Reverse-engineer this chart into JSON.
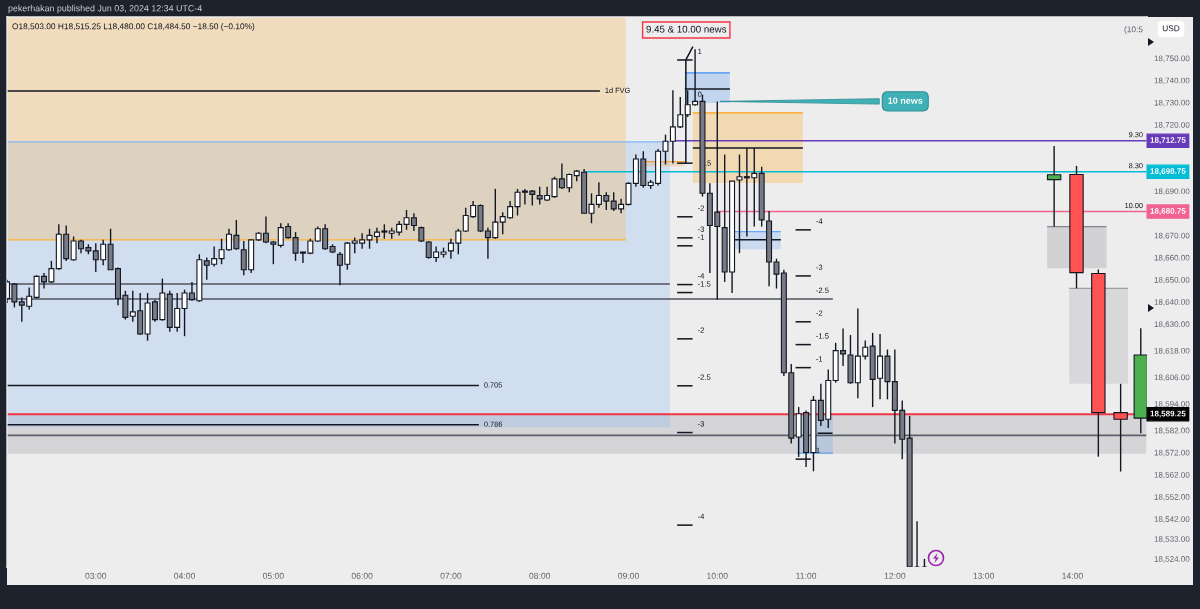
{
  "chart_data": {
    "type": "candlestick",
    "title": "pekerhakan published Jun 03, 2024 12:34 UTC-4",
    "subtitle": "O18,503.00 H18,515.25 L18,480.00 C18,484.50 −18.50 (−0.10%)",
    "xlim": [
      2.0,
      14.84
    ],
    "ylim": [
      18520.3,
      18768.6
    ],
    "xticks": [
      {
        "value": 3,
        "label": "03:00"
      },
      {
        "value": 4,
        "label": "04:00"
      },
      {
        "value": 5,
        "label": "05:00"
      },
      {
        "value": 6,
        "label": "06:00"
      },
      {
        "value": 7,
        "label": "07:00"
      },
      {
        "value": 8,
        "label": "08:00"
      },
      {
        "value": 9,
        "label": "09:00"
      },
      {
        "value": 10,
        "label": "10:00"
      },
      {
        "value": 11,
        "label": "11:00"
      },
      {
        "value": 12,
        "label": "12:00"
      },
      {
        "value": 13,
        "label": "13:00"
      },
      {
        "value": 14,
        "label": "14:00"
      }
    ],
    "yticks": [
      {
        "value": 18750,
        "label": "18,750.00"
      },
      {
        "value": 18740,
        "label": "18,740.00"
      },
      {
        "value": 18730,
        "label": "18,730.00"
      },
      {
        "value": 18720,
        "label": "18,720.00"
      },
      {
        "value": 18690,
        "label": "18,690.00"
      },
      {
        "value": 18670,
        "label": "18,670.00"
      },
      {
        "value": 18660,
        "label": "18,660.00"
      },
      {
        "value": 18650,
        "label": "18,650.00"
      },
      {
        "value": 18640,
        "label": "18,640.00"
      },
      {
        "value": 18630,
        "label": "18,630.00"
      },
      {
        "value": 18618,
        "label": "18,618.00"
      },
      {
        "value": 18606,
        "label": "18,606.00"
      },
      {
        "value": 18594,
        "label": "18,594.00"
      },
      {
        "value": 18582,
        "label": "18,582.00"
      },
      {
        "value": 18572,
        "label": "18,572.00"
      },
      {
        "value": 18562,
        "label": "18,562.00"
      },
      {
        "value": 18552,
        "label": "18,552.00"
      },
      {
        "value": 18542,
        "label": "18,542.00"
      },
      {
        "value": 18533,
        "label": "18,533.00"
      },
      {
        "value": 18524,
        "label": "18,524.00"
      }
    ],
    "bands": [
      {
        "axis": "y",
        "from": 18571.4,
        "to": 18589.0,
        "color": "#d5d5d7"
      }
    ],
    "ref_lines": [
      {
        "axis": "y",
        "value": 18589.25,
        "label": "18,589.25",
        "color": "#f23645"
      },
      {
        "axis": "y",
        "value": 18579.7,
        "color": "#5d606b"
      }
    ],
    "series": [
      {
        "type": "line",
        "x": [
          2.0,
          9.466
        ],
        "values": [
          18712.2,
          18712.2
        ],
        "lower": [
          18583.4,
          18583.4
        ],
        "upper": [
          18712.2,
          18712.2
        ],
        "color": "#81b5f9"
      },
      {
        "type": "line",
        "x": [
          2.0,
          8.971
        ],
        "values": [
          18668.0,
          18668.0
        ],
        "lower": [
          18668.0,
          18668.0
        ],
        "upper": [
          18768.6,
          18768.6
        ],
        "color": "#ffb131"
      },
      {
        "type": "line",
        "x": [
          9.635,
          10.142
        ],
        "values": [
          18743.4,
          18743.4
        ],
        "lower": [
          18729.8,
          18729.8
        ],
        "upper": [
          18743.4,
          18743.4
        ],
        "color": "#4191f9"
      },
      {
        "type": "line",
        "x": [
          9.725,
          10.964
        ],
        "values": [
          18725.3,
          18725.3
        ],
        "lower": [
          18693.7,
          18693.7
        ],
        "upper": [
          18725.3,
          18725.3
        ],
        "color": "#ffa10d"
      },
      {
        "type": "line",
        "x": [
          10.176,
          10.716
        ],
        "values": [
          18671.7,
          18671.7
        ],
        "lower": [
          18663.8,
          18663.8
        ],
        "upper": [
          18671.7,
          18671.7
        ],
        "color": "#65a9ff"
      },
      {
        "type": "line",
        "x": [
          10.897,
          11.302
        ],
        "values": [
          18571.7,
          18571.7
        ],
        "lower": [
          18571.7,
          18571.7
        ],
        "upper": [
          18589.0,
          18589.0
        ],
        "color": "#61a1eb"
      },
      {
        "type": "line",
        "x": [
          13.715,
          14.384
        ],
        "values": [
          18674.0,
          18674.0
        ],
        "lower": [
          18655.2,
          18655.2
        ],
        "upper": [
          18674.0,
          18674.0
        ],
        "color": "#85858d"
      },
      {
        "type": "line",
        "x": [
          13.963,
          14.627
        ],
        "values": [
          18646.1,
          18646.1
        ],
        "lower": [
          18603.0,
          18603.0
        ],
        "upper": [
          18646.1,
          18646.1
        ],
        "color": "#9d9da5"
      },
      {
        "type": "line",
        "x": [
          9.166,
          9.635
        ],
        "values": [
          18703.3,
          18703.3
        ],
        "lower": [
          18701.1,
          18701.1
        ],
        "upper": [
          18703.3,
          18703.3
        ],
        "color": "#f0a040"
      },
      {
        "type": "line",
        "name": "1d FVG",
        "x": [
          2.0,
          8.678
        ],
        "values": [
          18735.2,
          18735.2
        ],
        "color": "#131722"
      },
      {
        "type": "line",
        "x": [
          2.0,
          9.466
        ],
        "values": [
          18648.1,
          18648.1
        ],
        "color": "#50535e"
      },
      {
        "type": "line",
        "x": [
          2.0,
          11.302
        ],
        "values": [
          18641.3,
          18641.3
        ],
        "color": "#50535e"
      },
      {
        "type": "line",
        "name": "0.705",
        "x": [
          2.0,
          7.315
        ],
        "values": [
          18602.2,
          18602.2
        ],
        "color": "#131722"
      },
      {
        "type": "line",
        "name": "0.786",
        "x": [
          2.0,
          7.315
        ],
        "values": [
          18584.5,
          18584.5
        ],
        "color": "#131722"
      },
      {
        "type": "line",
        "name": "9.30",
        "x": [
          9.5,
          14.84
        ],
        "values": [
          18712.75,
          18712.75
        ],
        "color": "#673ab7",
        "value_labels": [
          null,
          "18,712.75"
        ]
      },
      {
        "type": "line",
        "name": "8.30",
        "x": [
          8.5,
          14.84
        ],
        "values": [
          18698.75,
          18698.75
        ],
        "color": "#00bcd4",
        "value_labels": [
          null,
          "18,698.75"
        ]
      },
      {
        "type": "line",
        "name": "10.00",
        "x": [
          10.0,
          14.84
        ],
        "values": [
          18680.75,
          18680.75
        ],
        "color": "#f06292",
        "value_labels": [
          null,
          "18,680.75"
        ]
      },
      {
        "type": "line",
        "x": [
          9.635,
          10.142
        ],
        "values": [
          18736.1,
          18736.1
        ],
        "color": "#131722"
      },
      {
        "type": "line",
        "x": [
          9.725,
          10.964
        ],
        "values": [
          18709.5,
          18709.5
        ],
        "color": "#131722"
      },
      {
        "type": "line",
        "x": [
          10.176,
          10.716
        ],
        "values": [
          18668.0,
          18668.0
        ],
        "color": "#131722"
      },
      {
        "type": "line",
        "x": [
          11.13,
          11.298
        ],
        "values": [
          18580.7,
          18580.7
        ],
        "color": "#131722"
      },
      {
        "type": "line",
        "x": [
          9.725,
          9.646,
          9.646
        ],
        "values": [
          18755.2,
          18749.2,
          18702.6
        ],
        "color": "#131722"
      },
      {
        "type": "line",
        "x": [
          9.548,
          9.722
        ],
        "values": [
          18749.2,
          18749.2
        ],
        "color": "#131722"
      },
      {
        "type": "line",
        "x": [
          9.548,
          9.722
        ],
        "values": [
          18702.6,
          18702.6
        ],
        "color": "#131722"
      },
      {
        "type": "line",
        "x": [
          9.548,
          9.722
        ],
        "values": [
          18678.4,
          18678.4
        ],
        "color": "#131722"
      },
      {
        "type": "line",
        "x": [
          9.548,
          9.722
        ],
        "values": [
          18668.9,
          18668.9
        ],
        "color": "#131722"
      },
      {
        "type": "line",
        "x": [
          9.548,
          9.722
        ],
        "values": [
          18665.3,
          18665.3
        ],
        "color": "#131722"
      },
      {
        "type": "line",
        "x": [
          9.548,
          9.722
        ],
        "values": [
          18647.8,
          18647.8
        ],
        "color": "#131722"
      },
      {
        "type": "line",
        "x": [
          9.548,
          9.722
        ],
        "values": [
          18644.2,
          18644.2
        ],
        "color": "#131722"
      },
      {
        "type": "line",
        "x": [
          9.548,
          9.722
        ],
        "values": [
          18623.3,
          18623.3
        ],
        "color": "#131722"
      },
      {
        "type": "line",
        "x": [
          9.548,
          9.722
        ],
        "values": [
          18602.1,
          18602.1
        ],
        "color": "#131722"
      },
      {
        "type": "line",
        "x": [
          9.548,
          9.722
        ],
        "values": [
          18581.0,
          18581.0
        ],
        "color": "#131722"
      },
      {
        "type": "line",
        "x": [
          9.548,
          9.722
        ],
        "values": [
          18539.2,
          18539.2
        ],
        "color": "#131722"
      },
      {
        "type": "line",
        "x": [
          10.882,
          11.054
        ],
        "values": [
          18672.5,
          18672.5
        ],
        "color": "#131722"
      },
      {
        "type": "line",
        "x": [
          10.882,
          11.054
        ],
        "values": [
          18651.7,
          18651.7
        ],
        "color": "#131722"
      },
      {
        "type": "line",
        "x": [
          10.882,
          11.054
        ],
        "values": [
          18631.0,
          18631.0
        ],
        "color": "#131722"
      },
      {
        "type": "line",
        "x": [
          10.882,
          11.054
        ],
        "values": [
          18620.7,
          18620.7
        ],
        "color": "#131722"
      },
      {
        "type": "line",
        "x": [
          10.882,
          11.054
        ],
        "values": [
          18610.3,
          18610.3
        ],
        "color": "#131722"
      },
      {
        "type": "line",
        "x": [
          10.882,
          11.054
        ],
        "values": [
          18569.0,
          18569.0
        ],
        "color": "#131722"
      },
      {
        "x": [
          2,
          2.0833,
          2.1667,
          2.25,
          2.3333,
          2.4167,
          2.5,
          2.5833,
          2.6667,
          2.75,
          2.8333,
          2.9167,
          3,
          3.0833,
          3.1667,
          3.25,
          3.3333,
          3.4167,
          3.5,
          3.5833,
          3.6667,
          3.75,
          3.8333,
          3.9167,
          4,
          4.0833,
          4.1667,
          4.25,
          4.3333,
          4.4167,
          4.5,
          4.5833,
          4.6667,
          4.75,
          4.8333,
          4.9167,
          5,
          5.0833,
          5.1667,
          5.25,
          5.3333,
          5.4167,
          5.5,
          5.5833,
          5.6667,
          5.75,
          5.8333,
          5.9167,
          6,
          6.0833,
          6.1667,
          6.25,
          6.3333,
          6.4167,
          6.5,
          6.5833,
          6.6667,
          6.75,
          6.8333,
          6.9167,
          7,
          7.0833,
          7.1667,
          7.25,
          7.3333,
          7.4167,
          7.5,
          7.5833,
          7.6667,
          7.75,
          7.8333,
          7.9167,
          8,
          8.0833,
          8.1667,
          8.25,
          8.3333,
          8.4167,
          8.5,
          8.5833,
          8.6667,
          8.75,
          8.8333,
          8.9167,
          9,
          9.0833,
          9.1667,
          9.25,
          9.3333,
          9.4167,
          9.5,
          9.5833,
          9.6667,
          9.75,
          9.8333,
          9.9167,
          10,
          10.0833,
          10.1667,
          10.25,
          10.3333,
          10.4167,
          10.5,
          10.5833,
          10.6667,
          10.75,
          10.8333,
          10.9167,
          11,
          11.0833,
          11.1667,
          11.25,
          11.3333,
          11.4167,
          11.5,
          11.5833,
          11.6667,
          11.75,
          11.8333,
          11.9167,
          12,
          12.0833,
          12.1667,
          12.25,
          12.3333
        ],
        "ohlc": [
          [
            18641.5,
            18650.0,
            18639.5,
            18649.0
          ],
          [
            18648.0,
            18648.5,
            18637.5,
            18640.0
          ],
          [
            18640.0,
            18642.0,
            18631.0,
            18638.5
          ],
          [
            18638.0,
            18646.5,
            18636.5,
            18642.5
          ],
          [
            18642.0,
            18652.0,
            18641.5,
            18651.5
          ],
          [
            18651.5,
            18653.0,
            18646.0,
            18649.0
          ],
          [
            18649.0,
            18658.5,
            18648.5,
            18655.0
          ],
          [
            18655.0,
            18675.0,
            18654.5,
            18670.5
          ],
          [
            18670.5,
            18674.5,
            18658.5,
            18659.5
          ],
          [
            18659.0,
            18669.5,
            18658.5,
            18667.5
          ],
          [
            18667.5,
            18668.0,
            18662.0,
            18664.0
          ],
          [
            18664.5,
            18666.0,
            18661.5,
            18663.0
          ],
          [
            18663.0,
            18666.5,
            18653.5,
            18659.0
          ],
          [
            18659.0,
            18668.0,
            18656.5,
            18666.0
          ],
          [
            18666.0,
            18673.0,
            18654.5,
            18654.5
          ],
          [
            18655.0,
            18655.5,
            18638.5,
            18641.5
          ],
          [
            18643.0,
            18645.0,
            18632.0,
            18633.0
          ],
          [
            18633.5,
            18645.0,
            18631.0,
            18635.5
          ],
          [
            18636.0,
            18644.0,
            18625.0,
            18625.5
          ],
          [
            18625.5,
            18644.0,
            18622.5,
            18639.5
          ],
          [
            18640.0,
            18641.0,
            18631.0,
            18632.0
          ],
          [
            18632.0,
            18650.5,
            18631.5,
            18644.0
          ],
          [
            18643.5,
            18645.0,
            18626.5,
            18628.5
          ],
          [
            18628.5,
            18644.0,
            18626.5,
            18637.0
          ],
          [
            18637.0,
            18645.5,
            18624.5,
            18644.0
          ],
          [
            18644.0,
            18649.0,
            18640.5,
            18641.0
          ],
          [
            18640.5,
            18661.5,
            18640.0,
            18659.0
          ],
          [
            18658.5,
            18660.0,
            18650.0,
            18656.5
          ],
          [
            18657.0,
            18665.0,
            18656.0,
            18659.5
          ],
          [
            18659.5,
            18668.5,
            18657.0,
            18663.5
          ],
          [
            18663.5,
            18673.0,
            18663.0,
            18670.5
          ],
          [
            18670.0,
            18677.0,
            18663.5,
            18664.0
          ],
          [
            18663.5,
            18667.5,
            18652.0,
            18654.5
          ],
          [
            18654.5,
            18668.0,
            18653.0,
            18668.0
          ],
          [
            18668.0,
            18671.5,
            18667.5,
            18671.0
          ],
          [
            18671.0,
            18678.5,
            18666.5,
            18667.0
          ],
          [
            18667.0,
            18667.5,
            18657.0,
            18666.0
          ],
          [
            18665.5,
            18675.5,
            18664.5,
            18673.5
          ],
          [
            18674.0,
            18675.5,
            18668.5,
            18669.0
          ],
          [
            18669.0,
            18671.5,
            18658.5,
            18662.0
          ],
          [
            18662.5,
            18662.5,
            18657.5,
            18662.0
          ],
          [
            18662.0,
            18668.5,
            18661.5,
            18667.5
          ],
          [
            18667.5,
            18674.0,
            18667.0,
            18673.0
          ],
          [
            18673.0,
            18675.0,
            18663.5,
            18664.0
          ],
          [
            18665.0,
            18666.0,
            18662.0,
            18662.5
          ],
          [
            18661.5,
            18662.5,
            18647.5,
            18656.5
          ],
          [
            18657.0,
            18667.0,
            18654.5,
            18666.5
          ],
          [
            18666.5,
            18669.0,
            18662.0,
            18667.5
          ],
          [
            18666.5,
            18671.0,
            18664.0,
            18668.0
          ],
          [
            18668.0,
            18673.0,
            18664.0,
            18670.0
          ],
          [
            18669.5,
            18673.5,
            18666.5,
            18671.5
          ],
          [
            18672.0,
            18675.0,
            18668.5,
            18671.5
          ],
          [
            18671.0,
            18673.5,
            18668.5,
            18672.0
          ],
          [
            18671.5,
            18676.5,
            18670.0,
            18675.0
          ],
          [
            18675.0,
            18681.5,
            18672.5,
            18678.0
          ],
          [
            18678.0,
            18680.0,
            18672.0,
            18674.5
          ],
          [
            18673.5,
            18674.0,
            18667.0,
            18667.5
          ],
          [
            18667.0,
            18667.5,
            18659.5,
            18660.0
          ],
          [
            18660.0,
            18665.0,
            18658.0,
            18662.5
          ],
          [
            18661.5,
            18664.5,
            18660.0,
            18662.5
          ],
          [
            18663.0,
            18668.5,
            18659.5,
            18666.5
          ],
          [
            18666.5,
            18673.0,
            18661.5,
            18672.0
          ],
          [
            18672.0,
            18682.5,
            18671.5,
            18679.0
          ],
          [
            18678.5,
            18685.5,
            18678.0,
            18683.5
          ],
          [
            18683.5,
            18684.0,
            18671.5,
            18672.0
          ],
          [
            18672.0,
            18673.5,
            18659.5,
            18669.0
          ],
          [
            18669.0,
            18691.0,
            18668.5,
            18676.0
          ],
          [
            18676.0,
            18680.5,
            18670.5,
            18678.5
          ],
          [
            18678.0,
            18685.5,
            18677.5,
            18683.0
          ],
          [
            18683.0,
            18691.0,
            18679.0,
            18689.5
          ],
          [
            18690.0,
            18691.0,
            18684.0,
            18689.5
          ],
          [
            18690.0,
            18690.5,
            18683.5,
            18688.5
          ],
          [
            18688.0,
            18692.0,
            18684.0,
            18686.5
          ],
          [
            18686.0,
            18692.0,
            18685.5,
            18688.0
          ],
          [
            18687.5,
            18696.5,
            18687.0,
            18695.5
          ],
          [
            18695.5,
            18702.5,
            18691.0,
            18691.5
          ],
          [
            18691.5,
            18698.0,
            18689.5,
            18697.5
          ],
          [
            18697.0,
            18699.5,
            18694.5,
            18699.0
          ],
          [
            18698.5,
            18700.0,
            18680.0,
            18680.0
          ],
          [
            18680.0,
            18689.0,
            18675.5,
            18684.0
          ],
          [
            18684.0,
            18694.0,
            18682.5,
            18688.0
          ],
          [
            18688.0,
            18689.5,
            18681.5,
            18685.5
          ],
          [
            18685.5,
            18689.5,
            18681.0,
            18682.0
          ],
          [
            18682.0,
            18686.5,
            18680.0,
            18684.0
          ],
          [
            18684.0,
            18694.0,
            18683.5,
            18693.5
          ],
          [
            18693.5,
            18706.5,
            18692.0,
            18704.5
          ],
          [
            18704.5,
            18708.0,
            18691.5,
            18692.5
          ],
          [
            18692.5,
            18695.0,
            18691.0,
            18694.0
          ],
          [
            18693.5,
            18709.0,
            18692.5,
            18708.0
          ],
          [
            18708.0,
            18715.5,
            18702.0,
            18712.5
          ],
          [
            18712.5,
            18735.5,
            18702.5,
            18719.0
          ],
          [
            18719.0,
            18732.5,
            18718.5,
            18724.5
          ],
          [
            18724.5,
            18735.5,
            18723.5,
            18729.0
          ],
          [
            18729.0,
            18754.0,
            18728.5,
            18730.5
          ],
          [
            18730.5,
            18733.5,
            18687.5,
            18689.0
          ],
          [
            18689.0,
            18693.5,
            18653.0,
            18674.5
          ],
          [
            18680.5,
            18730.5,
            18641.0,
            18674.0
          ],
          [
            18673.5,
            18706.5,
            18649.0,
            18653.5
          ],
          [
            18653.5,
            18694.5,
            18644.0,
            18694.5
          ],
          [
            18695.0,
            18706.5,
            18662.0,
            18696.5
          ],
          [
            18696.5,
            18709.5,
            18669.5,
            18696.0
          ],
          [
            18696.0,
            18709.5,
            18674.0,
            18698.0
          ],
          [
            18698.0,
            18701.0,
            18674.0,
            18677.0
          ],
          [
            18676.5,
            18681.0,
            18647.0,
            18658.0
          ],
          [
            18658.0,
            18659.5,
            18646.0,
            18652.5
          ],
          [
            18653.0,
            18654.5,
            18606.5,
            18608.0
          ],
          [
            18608.0,
            18612.0,
            18576.0,
            18578.5
          ],
          [
            18579.0,
            18592.5,
            18570.0,
            18589.5
          ],
          [
            18590.0,
            18591.0,
            18565.5,
            18572.0
          ],
          [
            18572.0,
            18597.5,
            18563.5,
            18595.5
          ],
          [
            18595.5,
            18603.0,
            18584.0,
            18586.5
          ],
          [
            18587.0,
            18609.5,
            18583.0,
            18604.5
          ],
          [
            18604.5,
            18621.5,
            18603.5,
            18618.0
          ],
          [
            18618.0,
            18628.0,
            18611.0,
            18616.5
          ],
          [
            18616.0,
            18625.0,
            18603.0,
            18603.5
          ],
          [
            18603.5,
            18637.0,
            18596.5,
            18615.5
          ],
          [
            18615.5,
            18622.5,
            18614.0,
            18619.5
          ],
          [
            18620.0,
            18626.0,
            18592.5,
            18605.0
          ],
          [
            18605.5,
            18625.5,
            18596.0,
            18615.5
          ],
          [
            18615.5,
            18618.5,
            18596.0,
            18604.0
          ],
          [
            18604.0,
            18618.5,
            18576.0,
            18591.0
          ],
          [
            18591.0,
            18595.5,
            18569.0,
            18578.0
          ],
          [
            18578.5,
            18588.5,
            18520.3,
            18520.3
          ],
          [
            18520.3,
            18541.0,
            18520.3,
            18520.3
          ],
          [
            18520.3,
            18524.0,
            18520.3,
            18520.3
          ]
        ],
        "colors": [
          "#ffffff",
          "#787b86",
          "#787b86",
          "#ffffff",
          "#ffffff",
          "#787b86",
          "#ffffff",
          "#ffffff",
          "#787b86",
          "#ffffff",
          "#787b86",
          "#787b86",
          "#787b86",
          "#ffffff",
          "#787b86",
          "#787b86",
          "#787b86",
          "#ffffff",
          "#787b86",
          "#ffffff",
          "#787b86",
          "#ffffff",
          "#787b86",
          "#ffffff",
          "#ffffff",
          "#787b86",
          "#ffffff",
          "#787b86",
          "#ffffff",
          "#ffffff",
          "#ffffff",
          "#787b86",
          "#787b86",
          "#ffffff",
          "#ffffff",
          "#787b86",
          "#787b86",
          "#ffffff",
          "#787b86",
          "#787b86",
          "#787b86",
          "#ffffff",
          "#ffffff",
          "#787b86",
          "#787b86",
          "#787b86",
          "#ffffff",
          "#ffffff",
          "#ffffff",
          "#ffffff",
          "#ffffff",
          "#787b86",
          "#ffffff",
          "#ffffff",
          "#ffffff",
          "#787b86",
          "#787b86",
          "#787b86",
          "#ffffff",
          "#ffffff",
          "#ffffff",
          "#ffffff",
          "#ffffff",
          "#ffffff",
          "#787b86",
          "#787b86",
          "#ffffff",
          "#ffffff",
          "#ffffff",
          "#ffffff",
          "#787b86",
          "#787b86",
          "#787b86",
          "#ffffff",
          "#ffffff",
          "#787b86",
          "#ffffff",
          "#ffffff",
          "#787b86",
          "#ffffff",
          "#ffffff",
          "#787b86",
          "#787b86",
          "#ffffff",
          "#ffffff",
          "#ffffff",
          "#787b86",
          "#ffffff",
          "#ffffff",
          "#ffffff",
          "#ffffff",
          "#ffffff",
          "#ffffff",
          "#ffffff",
          "#787b86",
          "#787b86",
          "#787b86",
          "#787b86",
          "#ffffff",
          "#ffffff",
          "#787b86",
          "#ffffff",
          "#787b86",
          "#787b86",
          "#787b86",
          "#787b86",
          "#787b86",
          "#ffffff",
          "#787b86",
          "#ffffff",
          "#787b86",
          "#ffffff",
          "#ffffff",
          "#787b86",
          "#787b86",
          "#ffffff",
          "#ffffff",
          "#787b86",
          "#ffffff",
          "#787b86",
          "#787b86",
          "#787b86",
          "#787b86",
          "#131722",
          "#131722"
        ]
      },
      {
        "x": [
          13.794,
          14.046,
          14.292,
          14.543,
          14.77
        ],
        "ohlc": [
          [
            18695.2,
            18710.4,
            18674.0,
            18697.4
          ],
          [
            18697.5,
            18701.4,
            18646.1,
            18653.2
          ],
          [
            18652.8,
            18654.6,
            18570.1,
            18590.0
          ],
          [
            18590.0,
            18603.0,
            18563.4,
            18587.0
          ],
          [
            18587.5,
            18628.1,
            18580.7,
            18616.0
          ]
        ],
        "colors": [
          "#4caf50",
          "#ff5252",
          "#ff5252",
          "#ff5252",
          "#4caf50"
        ]
      }
    ],
    "annotations": [
      "9.45 & 10.00 news",
      {
        "text": "10 news",
        "x": 10.0,
        "y": 18730.5
      },
      "USD",
      "(10:5",
      {
        "text": "1",
        "x": 9.722,
        "y": 18749.2
      },
      {
        "text": "0",
        "x": 9.722,
        "y": 18729.8
      },
      {
        "text": ".5",
        "x": 9.804,
        "y": 18698.75
      },
      {
        "text": "-2",
        "x": 9.722,
        "y": 18678.4
      },
      {
        "text": "-3",
        "x": 9.722,
        "y": 18668.9
      },
      {
        "text": "-1",
        "x": 9.722,
        "y": 18665.3
      },
      {
        "text": "-4",
        "x": 9.722,
        "y": 18647.8
      },
      {
        "text": "-1.5",
        "x": 9.722,
        "y": 18644.2
      },
      {
        "text": "-2",
        "x": 9.722,
        "y": 18623.3
      },
      {
        "text": "-2.5",
        "x": 9.722,
        "y": 18602.1
      },
      {
        "text": "-3",
        "x": 9.722,
        "y": 18581.0
      },
      {
        "text": "-4",
        "x": 9.722,
        "y": 18539.2
      },
      {
        "text": "-4",
        "x": 11.054,
        "y": 18672.5
      },
      {
        "text": "-3",
        "x": 11.054,
        "y": 18651.7
      },
      {
        "text": "-2.5",
        "x": 11.054,
        "y": 18641.3
      },
      {
        "text": "-2",
        "x": 11.054,
        "y": 18631.0
      },
      {
        "text": "-1.5",
        "x": 11.054,
        "y": 18620.7
      },
      {
        "text": "-1",
        "x": 11.054,
        "y": 18610.3
      },
      {
        "text": "1",
        "x": 11.054,
        "y": 18569.0
      }
    ]
  }
}
